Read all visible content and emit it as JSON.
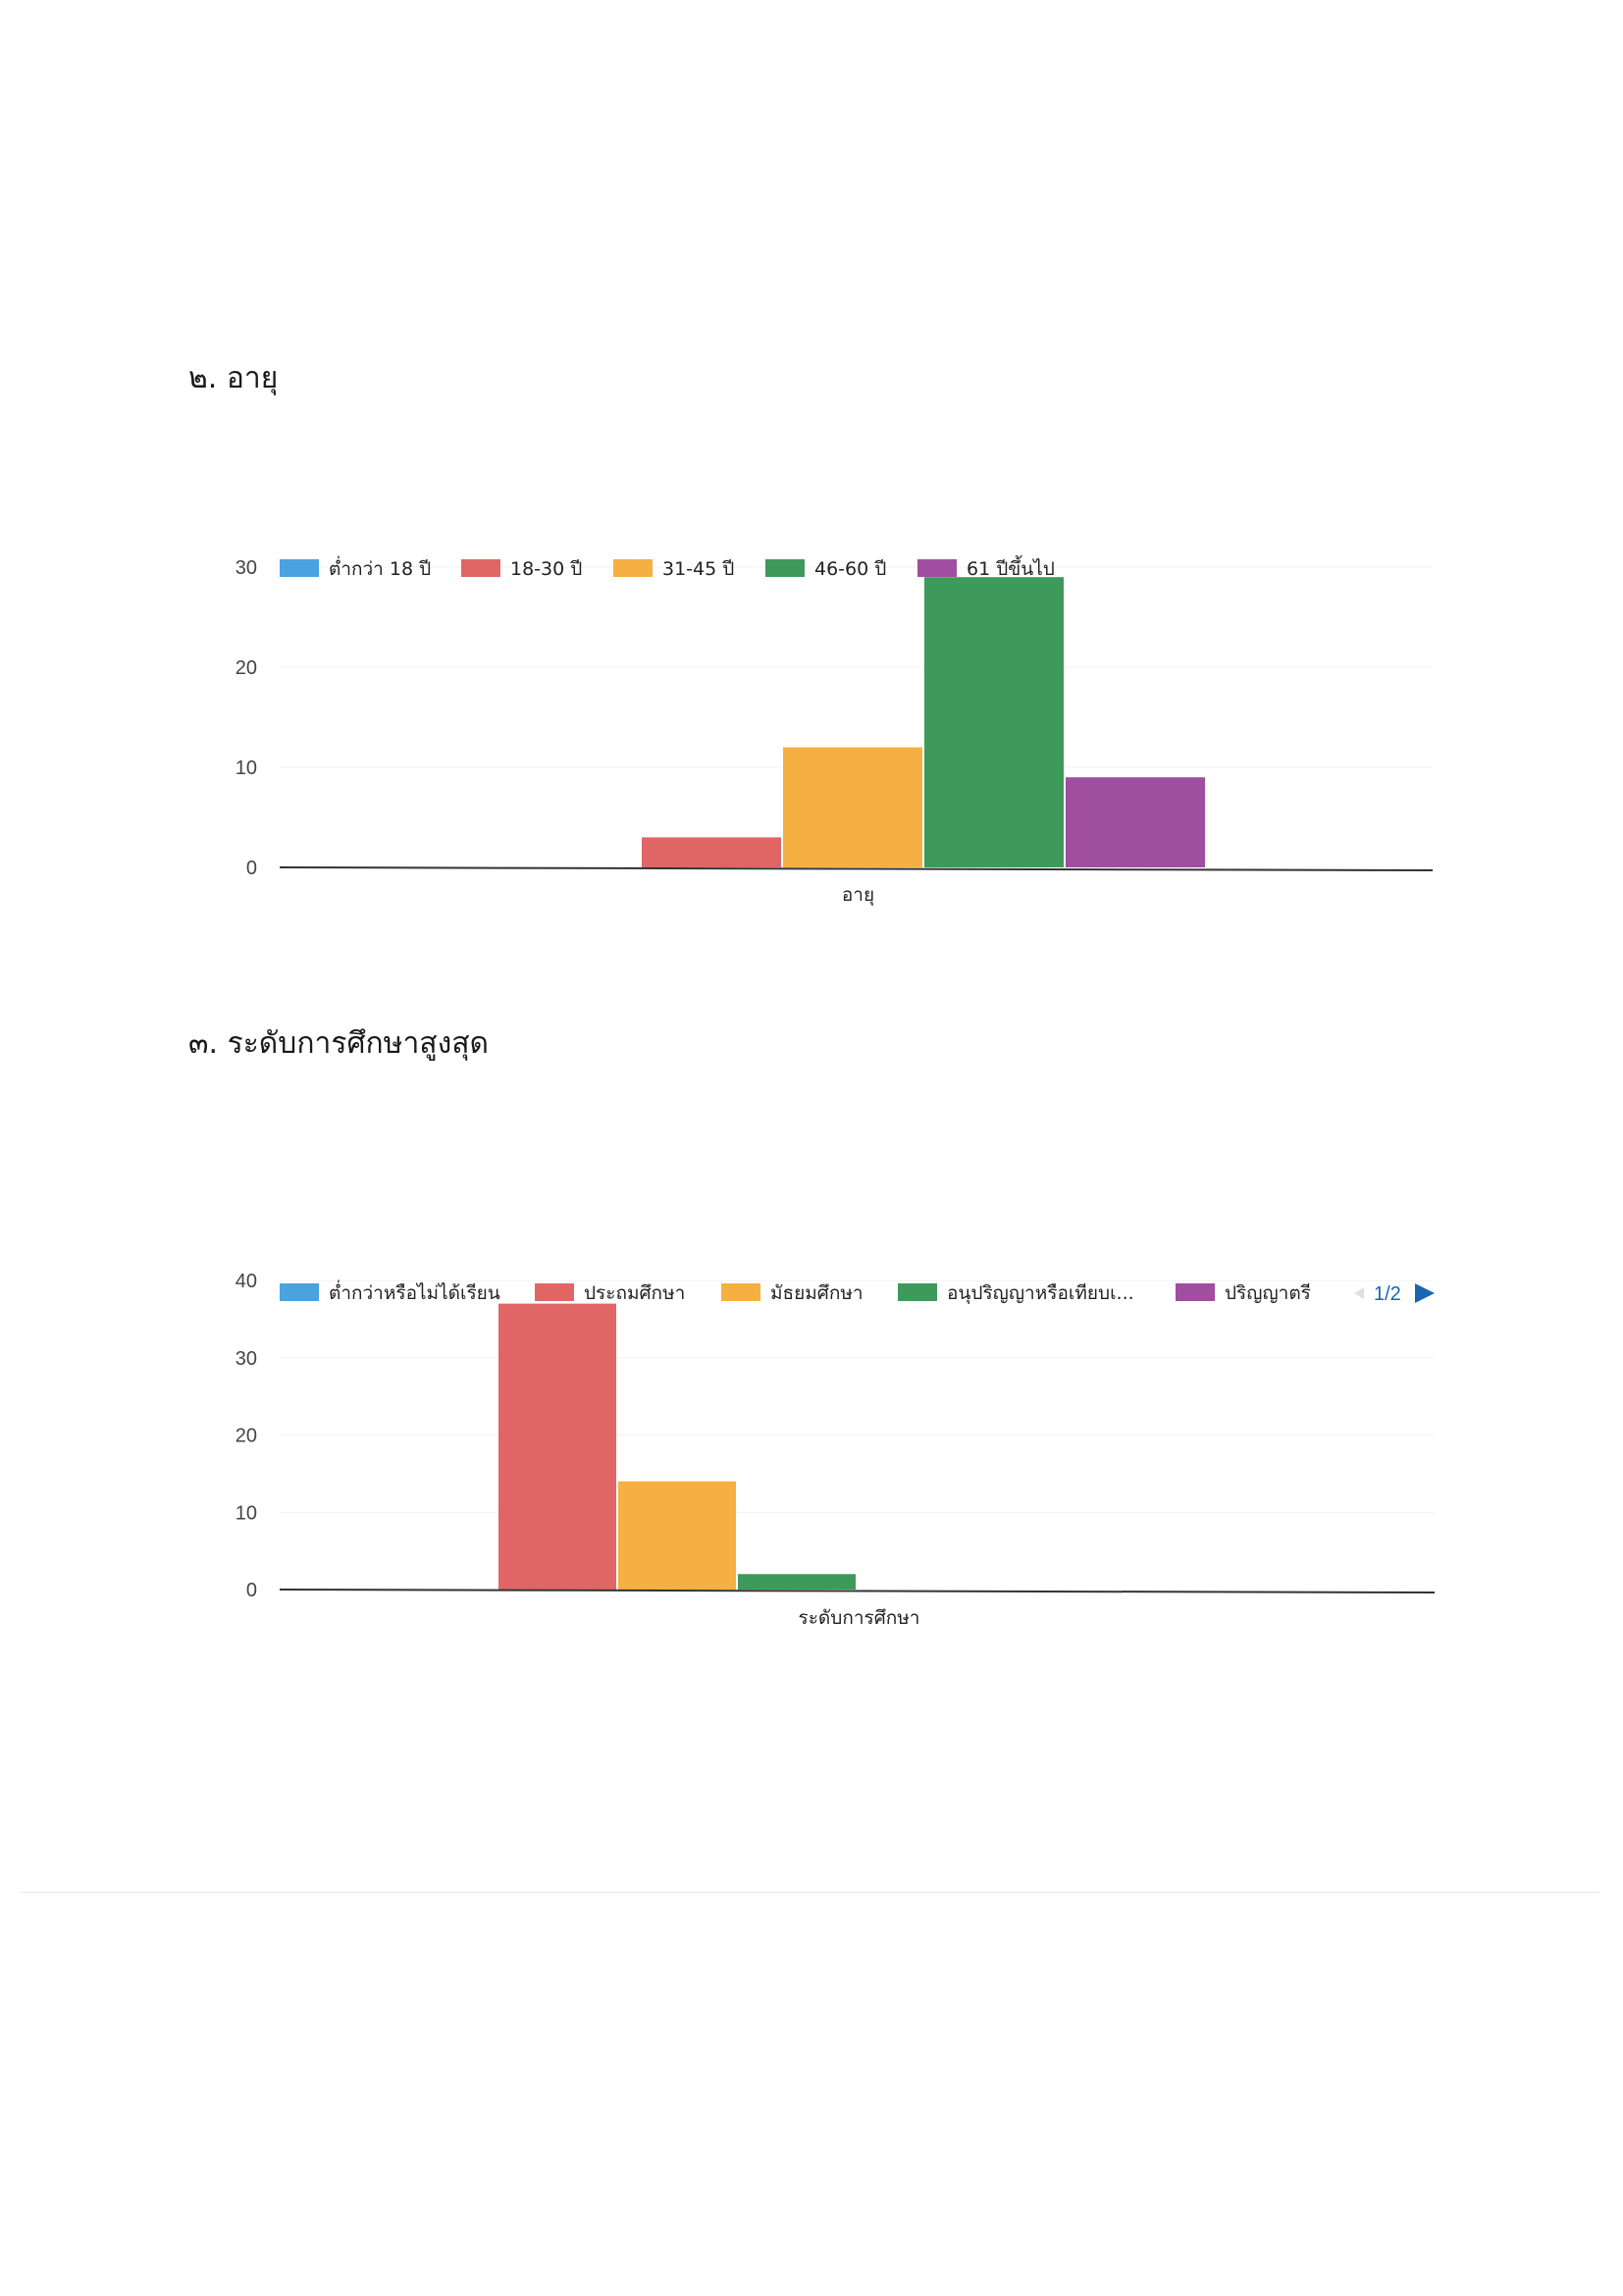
{
  "sections": [
    {
      "heading": "๒. อายุ"
    },
    {
      "heading": "๓. ระดับการศึกษาสูงสุด"
    }
  ],
  "chart_data": [
    {
      "type": "bar",
      "title": "",
      "xlabel": "อายุ",
      "ylabel": "",
      "categories": [
        "อายุ"
      ],
      "ylim": [
        0,
        30
      ],
      "yticks": [
        0,
        10,
        20,
        30
      ],
      "legend_position": "top",
      "grid": true,
      "series": [
        {
          "name": "ต่ำกว่า 18 ปี",
          "color": "#4aa3df",
          "values": [
            0
          ]
        },
        {
          "name": "18-30 ปี",
          "color": "#e06666",
          "values": [
            3
          ]
        },
        {
          "name": "31-45 ปี",
          "color": "#f6b042",
          "values": [
            12
          ]
        },
        {
          "name": "46-60 ปี",
          "color": "#3d9a5b",
          "values": [
            29
          ]
        },
        {
          "name": "61 ปีขึ้นไป",
          "color": "#a04ea0",
          "values": [
            9
          ]
        }
      ]
    },
    {
      "type": "bar",
      "title": "",
      "xlabel": "ระดับการศึกษา",
      "ylabel": "",
      "categories": [
        "ระดับการศึกษา"
      ],
      "ylim": [
        0,
        40
      ],
      "yticks": [
        0,
        10,
        20,
        30,
        40
      ],
      "legend_position": "top",
      "legend_pager": "1/2",
      "grid": true,
      "series": [
        {
          "name": "ต่ำกว่าหรือไม่ได้เรียน",
          "color": "#4aa3df",
          "values": [
            0
          ]
        },
        {
          "name": "ประถมศึกษา",
          "color": "#e06666",
          "values": [
            37
          ]
        },
        {
          "name": "มัธยมศึกษา",
          "color": "#f6b042",
          "values": [
            14
          ]
        },
        {
          "name": "อนุปริญญาหรือเทียบเ...",
          "color": "#3d9a5b",
          "values": [
            2
          ]
        },
        {
          "name": "ปริญญาตรี",
          "color": "#a04ea0",
          "values": [
            0
          ]
        }
      ]
    }
  ]
}
